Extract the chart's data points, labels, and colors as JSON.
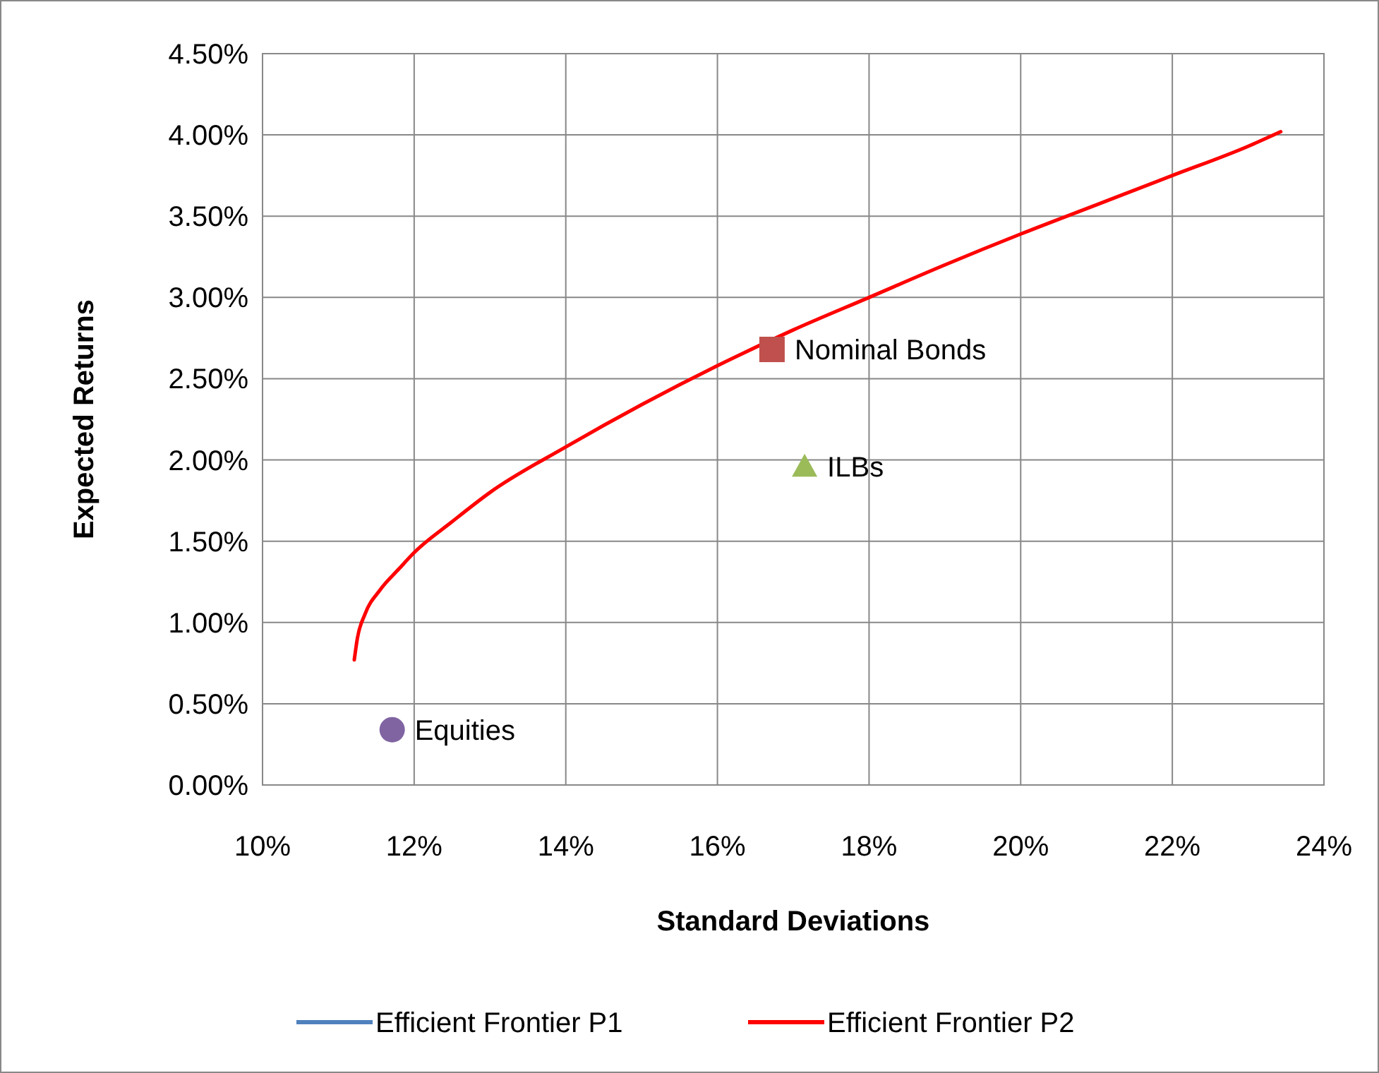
{
  "chart_data": {
    "type": "line",
    "xlabel": "Standard Deviations",
    "ylabel": "Expected Returns",
    "xlim": [
      10,
      24
    ],
    "ylim": [
      0,
      4.5
    ],
    "xticks": [
      {
        "value": 10,
        "label": "10%"
      },
      {
        "value": 12,
        "label": "12%"
      },
      {
        "value": 14,
        "label": "14%"
      },
      {
        "value": 16,
        "label": "16%"
      },
      {
        "value": 18,
        "label": "18%"
      },
      {
        "value": 20,
        "label": "20%"
      },
      {
        "value": 22,
        "label": "22%"
      },
      {
        "value": 24,
        "label": "24%"
      }
    ],
    "yticks": [
      {
        "value": 0,
        "label": "0.00%"
      },
      {
        "value": 0.5,
        "label": "0.50%"
      },
      {
        "value": 1,
        "label": "1.00%"
      },
      {
        "value": 1.5,
        "label": "1.50%"
      },
      {
        "value": 2,
        "label": "2.00%"
      },
      {
        "value": 2.5,
        "label": "2.50%"
      },
      {
        "value": 3,
        "label": "3.00%"
      },
      {
        "value": 3.5,
        "label": "3.50%"
      },
      {
        "value": 4,
        "label": "4.00%"
      },
      {
        "value": 4.5,
        "label": "4.50%"
      }
    ],
    "grid": true,
    "legend": "bottom",
    "marker": "none",
    "line_style": "solid",
    "series": [
      {
        "name": "Efficient Frontier P1",
        "color": "#4f81bd"
      },
      {
        "name": "Efficient Frontier P2",
        "color": "#ff0000",
        "x": [
          11.21,
          11.25,
          11.35,
          11.55,
          11.8,
          12,
          12.5,
          13,
          14,
          15,
          16,
          17,
          18,
          19,
          20,
          21,
          22,
          23,
          23.43
        ],
        "values": [
          0.77,
          0.9,
          1.05,
          1.2,
          1.33,
          1.43,
          1.62,
          1.8,
          2.08,
          2.34,
          2.58,
          2.8,
          3,
          3.2,
          3.39,
          3.57,
          3.75,
          3.93,
          4.02
        ]
      },
      {
        "name": "Equities",
        "type": "scatter",
        "marker": "circle",
        "color": "#8064a2",
        "x": [
          11.71
        ],
        "values": [
          0.34
        ]
      },
      {
        "name": "Nominal Bonds",
        "type": "scatter",
        "marker": "square",
        "color": "#c0504d",
        "x": [
          16.72
        ],
        "values": [
          2.68
        ]
      },
      {
        "name": "ILBs",
        "type": "scatter",
        "marker": "triangle",
        "color": "#9bbb59",
        "x": [
          17.15
        ],
        "values": [
          1.96
        ]
      }
    ]
  }
}
